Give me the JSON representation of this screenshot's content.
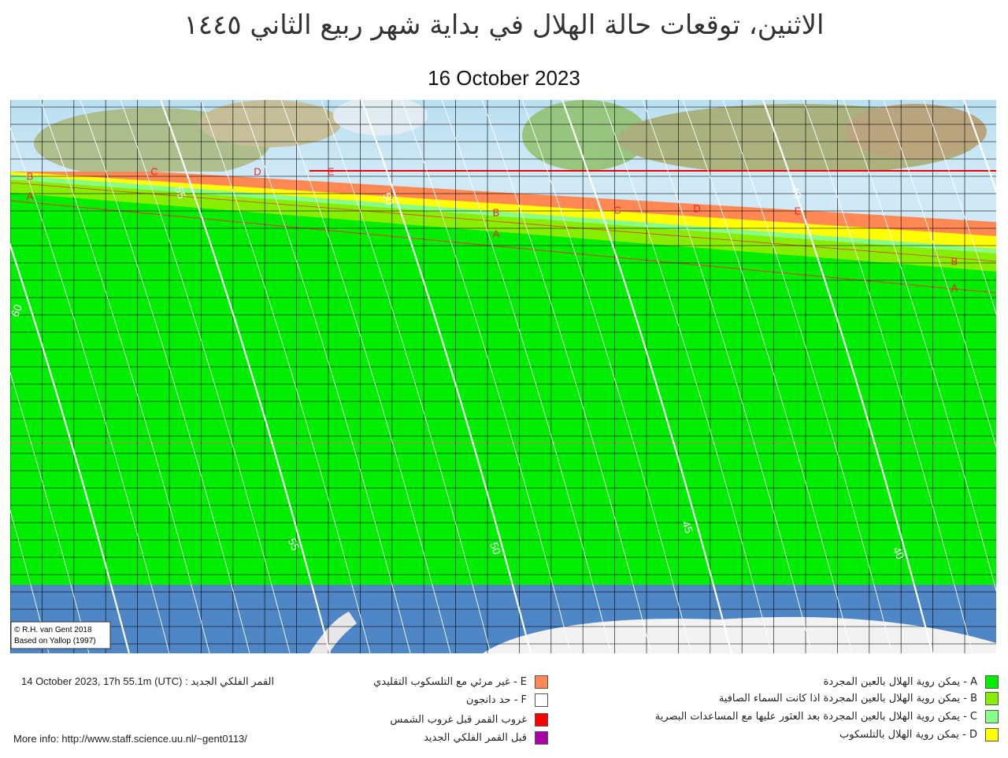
{
  "title": "الاثنين، توقعات حالة الهلال في بداية شهر ربيع الثاني ١٤٤٥",
  "date": "16 October 2023",
  "map": {
    "credit": [
      "© R.H. van Gent 2018",
      "Based on Yallop (1997)"
    ],
    "contour_labels": [
      "60",
      "55",
      "50",
      "45",
      "40"
    ],
    "zone_labels": [
      "A",
      "B",
      "C",
      "D",
      "E"
    ]
  },
  "footer": {
    "new_moon": "14 October 2023, 17h 55.1m (UTC) : القمر الفلكي الجديد",
    "more_info": "More info: http://www.staff.science.uu.nl/~gent0113/"
  },
  "legend": [
    {
      "label": "A - يمكن روية الهلال بالعين المجردة",
      "color": "#00ee00"
    },
    {
      "label": "B - يمكن روية الهلال بالعين المجردة اذا كانت السماء الصافية",
      "color": "#88ee00"
    },
    {
      "label": "C - يمكن روية الهلال بالعين المجردة بعد العثور عليها مع المساعدات البصرية",
      "color": "#88ff88"
    },
    {
      "label": "D - يمكن روية الهلال بالتلسكوب",
      "color": "#ffff00"
    },
    {
      "label": "E - غير مرئي مع التلسكوب التقليدي",
      "color": "#ff8855"
    },
    {
      "label": "F - حد دانجون",
      "color": "#ffffff"
    },
    {
      "label": "غروب القمر قبل غروب الشمس",
      "color": "#ff0000"
    },
    {
      "label": "قبل القمر  الفلكي الجديد",
      "color": "#aa00aa"
    }
  ]
}
